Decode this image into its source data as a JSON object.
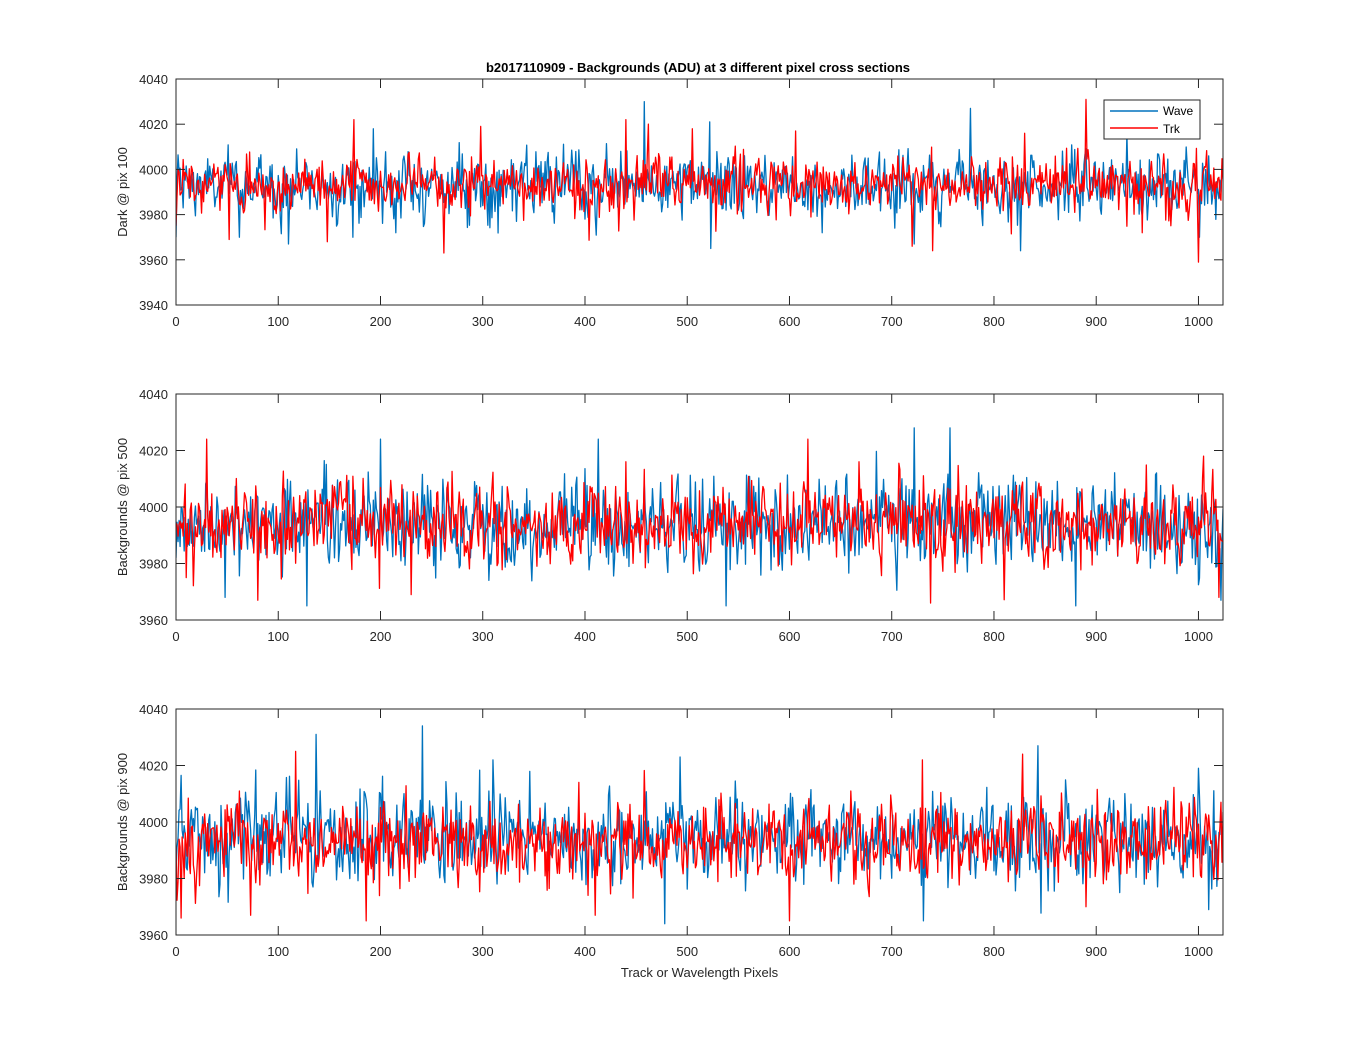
{
  "figure_title": "b2017110909 - Backgrounds (ADU) at 3 different pixel cross sections",
  "colors": {
    "wave": "#0072BD",
    "trk": "#FF0000",
    "axis": "#262626",
    "background": "#ffffff"
  },
  "chart_data": [
    {
      "type": "line",
      "title": "b2017110909 - Backgrounds (ADU) at 3 different pixel cross sections",
      "xlabel": "",
      "ylabel": "Dark @ pix 100",
      "xlim": [
        0,
        1024
      ],
      "ylim": [
        3940,
        4040
      ],
      "xticks": [
        0,
        100,
        200,
        300,
        400,
        500,
        600,
        700,
        800,
        900,
        1000
      ],
      "yticks": [
        3940,
        3960,
        3980,
        4000,
        4020,
        4040
      ],
      "legend": {
        "position": "top-right",
        "entries": [
          "Wave",
          "Trk"
        ]
      },
      "series": [
        {
          "name": "Wave",
          "color": "#0072BD",
          "mean": 3993,
          "sd": 7,
          "peaks": [
            [
              0,
              3970
            ],
            [
              62,
              3970
            ],
            [
              110,
              3967
            ],
            [
              173,
              3970
            ],
            [
              193,
              4018
            ],
            [
              215,
              3972
            ],
            [
              333,
              3977
            ],
            [
              400,
              3978
            ],
            [
              458,
              4030
            ],
            [
              522,
              4021
            ],
            [
              523,
              3965
            ],
            [
              632,
              3972
            ],
            [
              722,
              3967
            ],
            [
              777,
              4027
            ],
            [
              826,
              3964
            ],
            [
              930,
              4016
            ],
            [
              1001,
              3970
            ],
            [
              1010,
              4006
            ]
          ]
        },
        {
          "name": "Trk",
          "color": "#FF0000",
          "mean": 3993,
          "sd": 6,
          "peaks": [
            [
              0,
              3975
            ],
            [
              52,
              3969
            ],
            [
              148,
              3968
            ],
            [
              174,
              4022
            ],
            [
              262,
              3963
            ],
            [
              298,
              4019
            ],
            [
              440,
              4022
            ],
            [
              462,
              4020
            ],
            [
              505,
              4018
            ],
            [
              606,
              4017
            ],
            [
              720,
              3966
            ],
            [
              740,
              3964
            ],
            [
              830,
              4016
            ],
            [
              890,
              4031
            ],
            [
              945,
              3972
            ],
            [
              1000,
              3959
            ]
          ]
        }
      ]
    },
    {
      "type": "line",
      "title": "",
      "xlabel": "",
      "ylabel": "Backgrounds @ pix 500",
      "xlim": [
        0,
        1024
      ],
      "ylim": [
        3960,
        4040
      ],
      "xticks": [
        0,
        100,
        200,
        300,
        400,
        500,
        600,
        700,
        800,
        900,
        1000
      ],
      "yticks": [
        3960,
        3980,
        4000,
        4020,
        4040
      ],
      "series": [
        {
          "name": "Wave",
          "color": "#0072BD",
          "mean": 3994,
          "sd": 8,
          "peaks": [
            [
              0,
              3982
            ],
            [
              48,
              3968
            ],
            [
              128,
              3965
            ],
            [
              200,
              4024
            ],
            [
              413,
              4024
            ],
            [
              538,
              3965
            ],
            [
              722,
              4028
            ],
            [
              757,
              4028
            ],
            [
              880,
              3965
            ],
            [
              1022,
              3967
            ]
          ]
        },
        {
          "name": "Trk",
          "color": "#FF0000",
          "mean": 3994,
          "sd": 7,
          "peaks": [
            [
              10,
              3975
            ],
            [
              30,
              4024
            ],
            [
              80,
              3967
            ],
            [
              230,
              3969
            ],
            [
              440,
              4016
            ],
            [
              618,
              4024
            ],
            [
              668,
              4016
            ],
            [
              738,
              3966
            ],
            [
              1005,
              4018
            ],
            [
              1020,
              3968
            ]
          ]
        }
      ]
    },
    {
      "type": "line",
      "title": "",
      "xlabel": "Track or Wavelength Pixels",
      "ylabel": "Backgrounds @ pix 900",
      "xlim": [
        0,
        1024
      ],
      "ylim": [
        3960,
        4040
      ],
      "xticks": [
        0,
        100,
        200,
        300,
        400,
        500,
        600,
        700,
        800,
        900,
        1000
      ],
      "yticks": [
        3960,
        3980,
        4000,
        4020,
        4040
      ],
      "series": [
        {
          "name": "Wave",
          "color": "#0072BD",
          "mean": 3994,
          "sd": 8,
          "peaks": [
            [
              137,
              4031
            ],
            [
              241,
              4034
            ],
            [
              310,
              4022
            ],
            [
              478,
              3964
            ],
            [
              493,
              4023
            ],
            [
              731,
              3965
            ],
            [
              843,
              4027
            ],
            [
              1000,
              4019
            ],
            [
              1010,
              3969
            ]
          ]
        },
        {
          "name": "Trk",
          "color": "#FF0000",
          "mean": 3993,
          "sd": 7,
          "peaks": [
            [
              5,
              3966
            ],
            [
              73,
              3967
            ],
            [
              117,
              4025
            ],
            [
              186,
              3965
            ],
            [
              410,
              3967
            ],
            [
              600,
              3965
            ],
            [
              730,
              4022
            ],
            [
              828,
              4024
            ],
            [
              890,
              3970
            ]
          ]
        }
      ]
    }
  ]
}
